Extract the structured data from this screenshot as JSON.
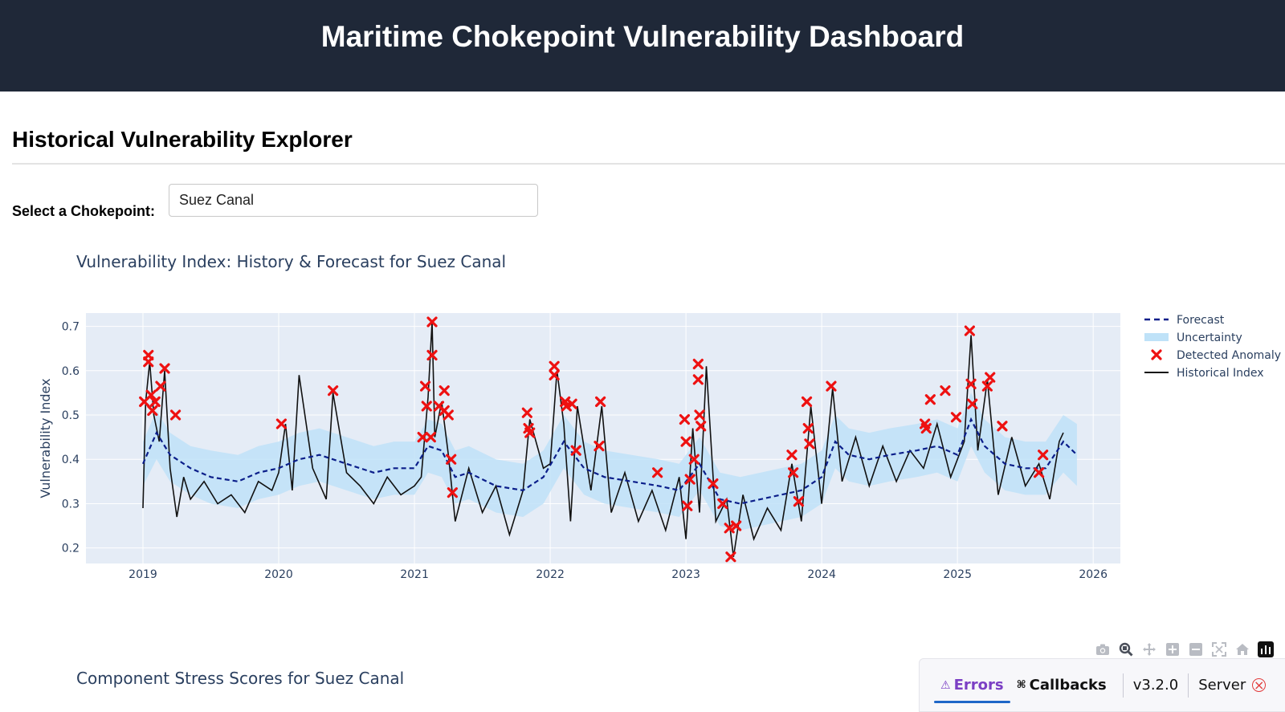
{
  "header": {
    "title": "Maritime Chokepoint Vulnerability Dashboard"
  },
  "explorer": {
    "title": "Historical Vulnerability Explorer",
    "select_label": "Select a Chokepoint:",
    "selected_value": "Suez Canal"
  },
  "chart_data": [
    {
      "type": "line",
      "title": "Vulnerability Index: History & Forecast for Suez Canal",
      "xlabel": "",
      "ylabel": "Vulnerability Index",
      "xlim": [
        2018.58,
        2026.2
      ],
      "ylim": [
        0.165,
        0.73
      ],
      "xticks": [
        "2019",
        "2020",
        "2021",
        "2022",
        "2023",
        "2024",
        "2025",
        "2026"
      ],
      "yticks": [
        "0.2",
        "0.3",
        "0.4",
        "0.5",
        "0.6",
        "0.7"
      ],
      "grid": true,
      "legend_position": "top-right",
      "legend": [
        "Forecast",
        "Uncertainty",
        "Detected Anomaly",
        "Historical Index"
      ],
      "colors": {
        "forecast": "#0b1e8a",
        "uncertainty": "#bfe2f8",
        "anomaly": "#ee1111",
        "historical": "#111111",
        "plot_bg": "#e5ecf6"
      },
      "forecast": {
        "x": [
          2019.0,
          2019.1,
          2019.2,
          2019.35,
          2019.5,
          2019.7,
          2019.85,
          2020.0,
          2020.15,
          2020.3,
          2020.5,
          2020.7,
          2020.85,
          2021.0,
          2021.1,
          2021.2,
          2021.3,
          2021.4,
          2021.6,
          2021.8,
          2021.95,
          2022.1,
          2022.25,
          2022.4,
          2022.6,
          2022.8,
          2022.95,
          2023.1,
          2023.25,
          2023.4,
          2023.55,
          2023.7,
          2023.85,
          2024.0,
          2024.1,
          2024.2,
          2024.35,
          2024.5,
          2024.7,
          2024.85,
          2025.0,
          2025.1,
          2025.2,
          2025.35,
          2025.5,
          2025.65,
          2025.78,
          2025.88
        ],
        "y": [
          0.39,
          0.46,
          0.41,
          0.38,
          0.36,
          0.35,
          0.37,
          0.38,
          0.4,
          0.41,
          0.39,
          0.37,
          0.38,
          0.38,
          0.43,
          0.42,
          0.36,
          0.37,
          0.34,
          0.33,
          0.36,
          0.44,
          0.38,
          0.36,
          0.35,
          0.34,
          0.33,
          0.39,
          0.31,
          0.3,
          0.31,
          0.32,
          0.33,
          0.36,
          0.44,
          0.41,
          0.4,
          0.41,
          0.42,
          0.43,
          0.41,
          0.49,
          0.43,
          0.39,
          0.38,
          0.38,
          0.44,
          0.41
        ]
      },
      "uncertainty": {
        "lower": [
          0.34,
          0.4,
          0.35,
          0.32,
          0.3,
          0.29,
          0.31,
          0.32,
          0.34,
          0.35,
          0.33,
          0.31,
          0.32,
          0.32,
          0.37,
          0.36,
          0.3,
          0.31,
          0.28,
          0.27,
          0.3,
          0.38,
          0.32,
          0.3,
          0.29,
          0.28,
          0.27,
          0.33,
          0.25,
          0.24,
          0.25,
          0.26,
          0.27,
          0.3,
          0.38,
          0.35,
          0.34,
          0.35,
          0.36,
          0.37,
          0.35,
          0.43,
          0.37,
          0.33,
          0.32,
          0.32,
          0.37,
          0.34
        ],
        "upper": [
          0.44,
          0.51,
          0.46,
          0.43,
          0.42,
          0.41,
          0.43,
          0.44,
          0.46,
          0.47,
          0.45,
          0.43,
          0.44,
          0.44,
          0.49,
          0.48,
          0.42,
          0.43,
          0.4,
          0.39,
          0.42,
          0.5,
          0.44,
          0.42,
          0.41,
          0.4,
          0.39,
          0.45,
          0.37,
          0.36,
          0.37,
          0.38,
          0.39,
          0.42,
          0.5,
          0.47,
          0.46,
          0.47,
          0.48,
          0.49,
          0.47,
          0.55,
          0.49,
          0.45,
          0.44,
          0.44,
          0.5,
          0.48
        ]
      },
      "historical": {
        "x": [
          2019.0,
          2019.02,
          2019.05,
          2019.08,
          2019.12,
          2019.16,
          2019.2,
          2019.25,
          2019.3,
          2019.35,
          2019.45,
          2019.55,
          2019.65,
          2019.75,
          2019.85,
          2019.95,
          2020.0,
          2020.05,
          2020.1,
          2020.15,
          2020.25,
          2020.35,
          2020.4,
          2020.5,
          2020.6,
          2020.7,
          2020.8,
          2020.9,
          2021.0,
          2021.05,
          2021.1,
          2021.13,
          2021.15,
          2021.2,
          2021.25,
          2021.3,
          2021.4,
          2021.5,
          2021.6,
          2021.7,
          2021.8,
          2021.85,
          2021.95,
          2022.0,
          2022.05,
          2022.1,
          2022.15,
          2022.2,
          2022.3,
          2022.38,
          2022.45,
          2022.55,
          2022.65,
          2022.75,
          2022.85,
          2022.95,
          2023.0,
          2023.05,
          2023.1,
          2023.15,
          2023.22,
          2023.3,
          2023.35,
          2023.42,
          2023.5,
          2023.6,
          2023.7,
          2023.78,
          2023.85,
          2023.92,
          2024.0,
          2024.08,
          2024.15,
          2024.25,
          2024.35,
          2024.45,
          2024.55,
          2024.65,
          2024.75,
          2024.85,
          2024.95,
          2025.05,
          2025.1,
          2025.15,
          2025.22,
          2025.3,
          2025.4,
          2025.5,
          2025.6,
          2025.68,
          2025.75,
          2025.78
        ],
        "y": [
          0.29,
          0.53,
          0.62,
          0.5,
          0.44,
          0.6,
          0.38,
          0.27,
          0.36,
          0.31,
          0.35,
          0.3,
          0.32,
          0.28,
          0.35,
          0.33,
          0.37,
          0.48,
          0.33,
          0.59,
          0.38,
          0.31,
          0.55,
          0.37,
          0.34,
          0.3,
          0.36,
          0.32,
          0.34,
          0.36,
          0.54,
          0.71,
          0.45,
          0.53,
          0.41,
          0.26,
          0.38,
          0.28,
          0.34,
          0.23,
          0.33,
          0.49,
          0.38,
          0.39,
          0.6,
          0.48,
          0.26,
          0.52,
          0.33,
          0.52,
          0.28,
          0.37,
          0.26,
          0.33,
          0.24,
          0.36,
          0.22,
          0.47,
          0.28,
          0.61,
          0.26,
          0.31,
          0.18,
          0.32,
          0.22,
          0.29,
          0.24,
          0.39,
          0.26,
          0.52,
          0.3,
          0.56,
          0.35,
          0.45,
          0.34,
          0.43,
          0.35,
          0.42,
          0.38,
          0.48,
          0.36,
          0.44,
          0.68,
          0.42,
          0.58,
          0.32,
          0.45,
          0.34,
          0.39,
          0.31,
          0.44,
          0.46
        ]
      },
      "anomalies": {
        "x": [
          2019.01,
          2019.04,
          2019.04,
          2019.06,
          2019.07,
          2019.09,
          2019.13,
          2019.16,
          2019.24,
          2020.02,
          2020.4,
          2021.06,
          2021.08,
          2021.09,
          2021.12,
          2021.13,
          2021.13,
          2021.18,
          2021.22,
          2021.22,
          2021.25,
          2021.27,
          2021.28,
          2021.83,
          2021.84,
          2021.85,
          2022.03,
          2022.03,
          2022.11,
          2022.12,
          2022.16,
          2022.19,
          2022.36,
          2022.37,
          2022.79,
          2022.99,
          2023.0,
          2023.01,
          2023.03,
          2023.06,
          2023.09,
          2023.09,
          2023.1,
          2023.11,
          2023.2,
          2023.27,
          2023.32,
          2023.33,
          2023.37,
          2023.78,
          2023.79,
          2023.83,
          2023.89,
          2023.9,
          2023.91,
          2024.07,
          2024.76,
          2024.77,
          2024.8,
          2024.91,
          2024.99,
          2025.09,
          2025.1,
          2025.11,
          2025.22,
          2025.24,
          2025.33,
          2025.6,
          2025.63
        ],
        "y": [
          0.53,
          0.635,
          0.62,
          0.545,
          0.51,
          0.53,
          0.565,
          0.605,
          0.5,
          0.48,
          0.555,
          0.45,
          0.565,
          0.52,
          0.45,
          0.635,
          0.71,
          0.52,
          0.555,
          0.51,
          0.5,
          0.4,
          0.325,
          0.505,
          0.47,
          0.46,
          0.61,
          0.59,
          0.53,
          0.52,
          0.525,
          0.42,
          0.43,
          0.53,
          0.37,
          0.49,
          0.44,
          0.295,
          0.355,
          0.4,
          0.615,
          0.58,
          0.5,
          0.475,
          0.345,
          0.3,
          0.245,
          0.18,
          0.25,
          0.41,
          0.37,
          0.305,
          0.53,
          0.47,
          0.435,
          0.565,
          0.48,
          0.47,
          0.535,
          0.555,
          0.495,
          0.69,
          0.57,
          0.525,
          0.565,
          0.585,
          0.475,
          0.37,
          0.41
        ]
      }
    },
    {
      "type": "bar",
      "title": "Component Stress Scores for Suez Canal"
    }
  ],
  "modebar": {
    "buttons": [
      "camera-icon",
      "zoom-icon",
      "pan-icon",
      "zoom-in-icon",
      "zoom-out-icon",
      "autoscale-icon",
      "reset-axes-icon",
      "plotly-logo-icon"
    ]
  },
  "devtools": {
    "errors_label": "Errors",
    "callbacks_label": "Callbacks",
    "version": "v3.2.0",
    "server_label": "Server"
  }
}
